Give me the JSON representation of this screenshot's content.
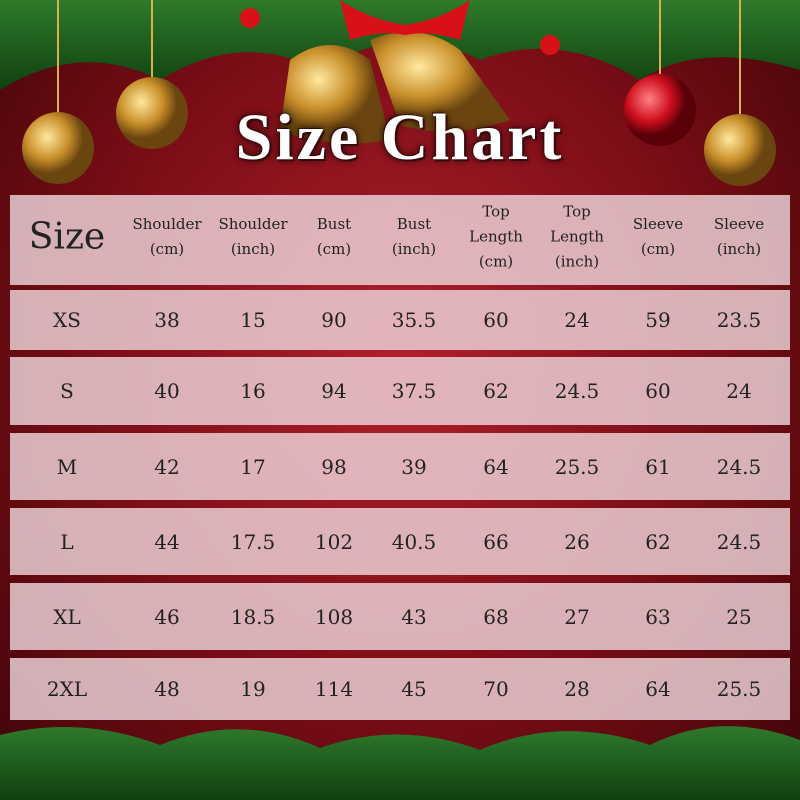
{
  "title": "Size Chart",
  "table": {
    "header": [
      "Size",
      "Shoulder\n(cm)",
      "Shoulder\n(inch)",
      "Bust\n(cm)",
      "Bust\n(inch)",
      "Top\nLength\n(cm)",
      "Top\nLength\n(inch)",
      "Sleeve\n(cm)",
      "Sleeve\n(inch)"
    ],
    "rows": [
      [
        "XS",
        "38",
        "15",
        "90",
        "35.5",
        "60",
        "24",
        "59",
        "23.5"
      ],
      [
        "S",
        "40",
        "16",
        "94",
        "37.5",
        "62",
        "24.5",
        "60",
        "24"
      ],
      [
        "M",
        "42",
        "17",
        "98",
        "39",
        "64",
        "25.5",
        "61",
        "24.5"
      ],
      [
        "L",
        "44",
        "17.5",
        "102",
        "40.5",
        "66",
        "26",
        "62",
        "24.5"
      ],
      [
        "XL",
        "46",
        "18.5",
        "108",
        "43",
        "68",
        "27",
        "63",
        "25"
      ],
      [
        "2XL",
        "48",
        "19",
        "114",
        "45",
        "70",
        "28",
        "64",
        "25.5"
      ]
    ]
  }
}
